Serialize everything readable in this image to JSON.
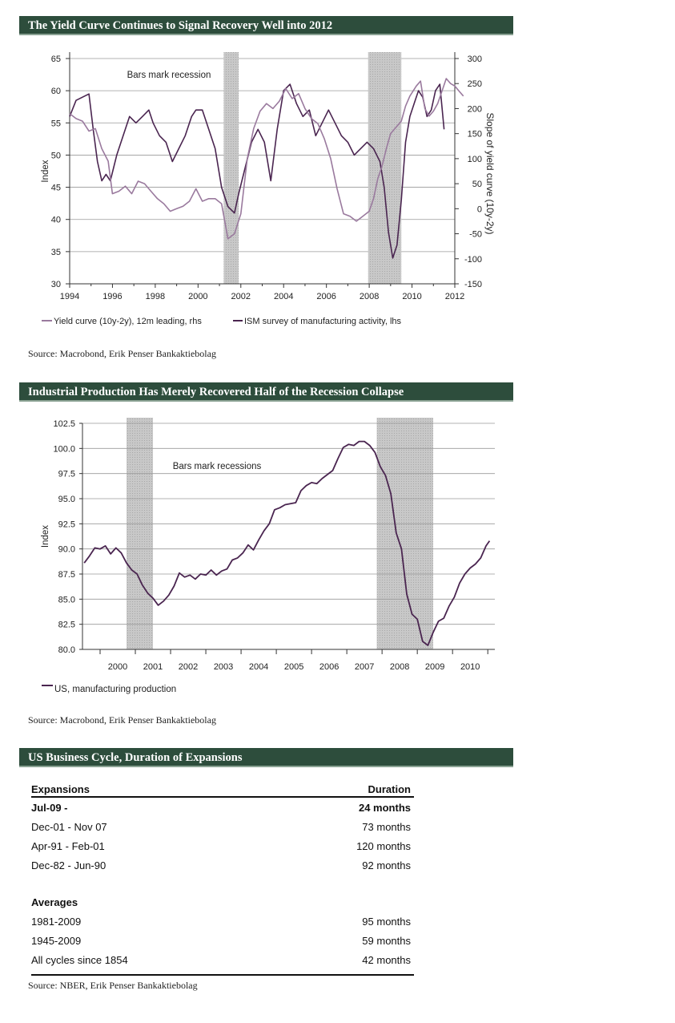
{
  "chart_data": [
    {
      "type": "line",
      "title": "The Yield Curve Continues to Signal Recovery Well into 2012",
      "ylabel": "Index",
      "y2label": "Slope of yield curve (10y-2y)",
      "ylim": [
        30,
        65
      ],
      "y2lim": [
        -150,
        300
      ],
      "xlim": [
        1994,
        2012
      ],
      "x_ticks": [
        "1994",
        "1996",
        "1998",
        "2000",
        "2002",
        "2004",
        "2006",
        "2008",
        "2010",
        "2012"
      ],
      "y_ticks": [
        "30",
        "35",
        "40",
        "45",
        "50",
        "55",
        "60",
        "65"
      ],
      "y2_ticks": [
        "-150",
        "-100",
        "-50",
        "0",
        "50",
        "100",
        "150",
        "200",
        "250",
        "300"
      ],
      "annotation": "Bars mark recession",
      "recessions": [
        [
          2001.2,
          2001.9
        ],
        [
          2007.95,
          2009.5
        ]
      ],
      "legend": [
        "Yield curve (10y-2y), 12m leading, rhs",
        "ISM survey of manufacturing activity, lhs"
      ],
      "series": [
        {
          "name": "ISM survey of manufacturing activity",
          "axis": "lhs",
          "color": "#4a2550",
          "x": [
            1994.0,
            1994.3,
            1994.6,
            1994.9,
            1995.1,
            1995.3,
            1995.5,
            1995.7,
            1995.9,
            1996.2,
            1996.5,
            1996.8,
            1997.1,
            1997.4,
            1997.7,
            1997.9,
            1998.2,
            1998.5,
            1998.8,
            1999.1,
            1999.4,
            1999.7,
            1999.9,
            2000.2,
            2000.5,
            2000.8,
            2001.1,
            2001.4,
            2001.7,
            2001.9,
            2002.2,
            2002.5,
            2002.8,
            2003.1,
            2003.4,
            2003.7,
            2004.0,
            2004.3,
            2004.6,
            2004.9,
            2005.2,
            2005.5,
            2005.8,
            2006.1,
            2006.4,
            2006.7,
            2007.0,
            2007.3,
            2007.6,
            2007.9,
            2008.2,
            2008.5,
            2008.7,
            2008.9,
            2009.1,
            2009.3,
            2009.5,
            2009.7,
            2009.9,
            2010.1,
            2010.3,
            2010.5,
            2010.7,
            2010.9,
            2011.1,
            2011.3,
            2011.5
          ],
          "values": [
            56,
            58.5,
            59,
            59.5,
            54,
            49,
            46,
            47,
            46,
            50,
            53,
            56,
            55,
            56,
            57,
            55,
            53,
            52,
            49,
            51,
            53,
            56,
            57,
            57,
            54,
            51,
            45,
            42,
            41,
            44,
            48,
            52,
            54,
            52,
            46,
            54,
            60,
            61,
            58,
            56,
            57,
            53,
            55,
            57,
            55,
            53,
            52,
            50,
            51,
            52,
            51,
            49,
            45,
            38,
            34,
            36,
            43,
            52,
            56,
            58,
            60,
            59,
            56,
            57,
            60,
            61,
            54
          ]
        },
        {
          "name": "Yield curve (10y-2y), 12m leading",
          "axis": "rhs",
          "color": "#9a7a9e",
          "x": [
            1994.0,
            1994.3,
            1994.6,
            1994.9,
            1995.2,
            1995.5,
            1995.8,
            1996.0,
            1996.3,
            1996.6,
            1996.9,
            1997.2,
            1997.5,
            1997.8,
            1998.1,
            1998.4,
            1998.7,
            1999.0,
            1999.3,
            1999.6,
            1999.9,
            2000.2,
            2000.5,
            2000.8,
            2001.1,
            2001.4,
            2001.7,
            2002.0,
            2002.3,
            2002.6,
            2002.9,
            2003.2,
            2003.5,
            2003.8,
            2004.1,
            2004.4,
            2004.7,
            2005.0,
            2005.3,
            2005.6,
            2005.9,
            2006.2,
            2006.5,
            2006.8,
            2007.1,
            2007.4,
            2007.7,
            2008.0,
            2008.2,
            2008.4,
            2008.6,
            2008.8,
            2009.0,
            2009.2,
            2009.5,
            2009.7,
            2009.9,
            2010.2,
            2010.4,
            2010.6,
            2010.8,
            2011.0,
            2011.2,
            2011.4,
            2011.6,
            2011.8,
            2012.0,
            2012.2,
            2012.4
          ],
          "values": [
            190,
            180,
            175,
            155,
            160,
            120,
            95,
            30,
            35,
            45,
            30,
            55,
            50,
            35,
            20,
            10,
            -5,
            0,
            5,
            15,
            40,
            15,
            20,
            20,
            10,
            -60,
            -50,
            -10,
            100,
            160,
            195,
            210,
            200,
            215,
            240,
            220,
            230,
            200,
            180,
            170,
            140,
            100,
            40,
            -10,
            -15,
            -25,
            -15,
            -5,
            20,
            60,
            85,
            120,
            150,
            160,
            175,
            205,
            225,
            245,
            255,
            200,
            185,
            195,
            210,
            235,
            260,
            250,
            245,
            235,
            225
          ]
        }
      ]
    },
    {
      "type": "line",
      "title": "Industrial Production Has Merely Recovered Half of the Recession Collapse",
      "ylabel": "Index",
      "ylim": [
        80,
        102.5
      ],
      "xlim": [
        1999.5,
        2011.2
      ],
      "x_ticks": [
        "2000",
        "2001",
        "2002",
        "2003",
        "2004",
        "2005",
        "2006",
        "2007",
        "2008",
        "2009",
        "2010"
      ],
      "y_ticks": [
        "80.0",
        "82.5",
        "85.0",
        "87.5",
        "90.0",
        "92.5",
        "95.0",
        "97.5",
        "100.0",
        "102.5"
      ],
      "annotation": "Bars mark recessions",
      "recessions": [
        [
          2000.75,
          2001.5
        ],
        [
          2007.85,
          2009.45
        ]
      ],
      "legend": [
        "US, manufacturing production"
      ],
      "series": [
        {
          "name": "US, manufacturing production",
          "color": "#4a2550",
          "x": [
            1999.55,
            1999.7,
            1999.85,
            2000.0,
            2000.15,
            2000.3,
            2000.45,
            2000.6,
            2000.75,
            2000.9,
            2001.05,
            2001.2,
            2001.35,
            2001.5,
            2001.65,
            2001.8,
            2001.95,
            2002.1,
            2002.25,
            2002.4,
            2002.55,
            2002.7,
            2002.85,
            2003.0,
            2003.15,
            2003.3,
            2003.45,
            2003.6,
            2003.75,
            2003.9,
            2004.05,
            2004.2,
            2004.35,
            2004.5,
            2004.65,
            2004.8,
            2004.95,
            2005.1,
            2005.25,
            2005.4,
            2005.55,
            2005.7,
            2005.85,
            2006.0,
            2006.15,
            2006.3,
            2006.45,
            2006.6,
            2006.75,
            2006.9,
            2007.05,
            2007.2,
            2007.35,
            2007.5,
            2007.65,
            2007.8,
            2007.95,
            2008.1,
            2008.25,
            2008.4,
            2008.55,
            2008.7,
            2008.85,
            2009.0,
            2009.15,
            2009.3,
            2009.45,
            2009.6,
            2009.75,
            2009.9,
            2010.05,
            2010.2,
            2010.35,
            2010.5,
            2010.65,
            2010.8,
            2010.95,
            2011.05
          ],
          "values": [
            88.6,
            89.3,
            90.1,
            90.0,
            90.3,
            89.5,
            90.1,
            89.6,
            88.6,
            87.9,
            87.5,
            86.4,
            85.6,
            85.1,
            84.4,
            84.8,
            85.4,
            86.3,
            87.6,
            87.2,
            87.4,
            87.0,
            87.5,
            87.4,
            87.9,
            87.4,
            87.8,
            88.0,
            88.9,
            89.1,
            89.6,
            90.4,
            89.9,
            90.9,
            91.8,
            92.5,
            93.9,
            94.1,
            94.4,
            94.5,
            94.6,
            95.8,
            96.3,
            96.6,
            96.5,
            97.0,
            97.4,
            97.8,
            99.0,
            100.1,
            100.4,
            100.3,
            100.7,
            100.7,
            100.3,
            99.6,
            98.2,
            97.3,
            95.5,
            91.6,
            90.0,
            85.5,
            83.5,
            83.0,
            80.8,
            80.4,
            81.7,
            82.8,
            83.1,
            84.3,
            85.2,
            86.6,
            87.5,
            88.1,
            88.5,
            89.1,
            90.3,
            90.8
          ]
        }
      ]
    }
  ],
  "table": {
    "title": "US Business Cycle, Duration of Expansions",
    "col_headers": [
      "Expansions",
      "Duration"
    ],
    "rows": [
      {
        "label": "Jul-09 -",
        "value": "24 months"
      },
      {
        "label": "Dec-01 - Nov 07",
        "value": "73 months"
      },
      {
        "label": "Apr-91 - Feb-01",
        "value": "120 months"
      },
      {
        "label": "Dec-82 - Jun-90",
        "value": "92 months"
      }
    ],
    "averages_label": "Averages",
    "averages": [
      {
        "label": "1981-2009",
        "value": "95 months"
      },
      {
        "label": "1945-2009",
        "value": "59 months"
      },
      {
        "label": "All cycles since 1854",
        "value": "42 months"
      }
    ]
  },
  "sources": {
    "chart1": "Source: Macrobond, Erik Penser Bankaktiebolag",
    "chart2": "Source: Macrobond, Erik Penser Bankaktiebolag",
    "table": "Source: NBER, Erik Penser Bankaktiebolag"
  }
}
